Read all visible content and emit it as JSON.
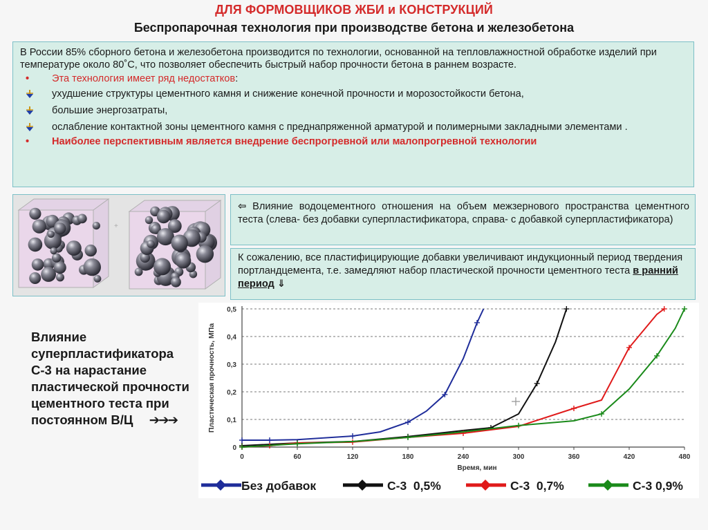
{
  "header": {
    "title": "ДЛЯ ФОРМОВЩИКОВ ЖБИ и КОНСТРУКЦИЙ",
    "subtitle": "Беспропарочная технология при производстве бетона и железобетона"
  },
  "intro": {
    "text": "В России 85% сборного бетона и железобетона производится по технологии, основанной на тепловлажностной обработке изделий при температуре около 80˚С, что позволяет обеспечить быстрый набор прочности бетона в раннем возрасте."
  },
  "disadvantages": {
    "lead_red": "Эта технология имеет ряд недостатков",
    "lead_colon": ":",
    "bullet_symbol": "•",
    "items": [
      " ухудшение структуры цементного камня и снижение конечной прочности и морозостойкости бетона,",
      "большие энергозатраты,",
      "ослабление контактной зоны цементного камня с преднапряженной арматурой и полимерными закладными элементами ."
    ],
    "conclusion_red": "Наиболее перспективным",
    "conclusion_rest": "  является внедрение беспрогревной или малопрогревной технологии"
  },
  "influence_wc": {
    "arrow": "⇦",
    "text": "  Влияние водоцементного отношения на объем межзернового пространства цементного теста (слева- без добавки суперпластификатора, справа- с добавкой суперпластификатора)"
  },
  "note": {
    "text_before": "К сожалению, все пластифицирующие добавки увеличивают индукционный период твердения портландцемента, т.е. замедляют набор пластической прочности цементного теста ",
    "underlined": "в ранний период",
    "arrow": " ⇓"
  },
  "caption": {
    "text": "Влияние суперпластификатора С-3 на нарастание пластической прочности цементного теста при постоянном В/Ц",
    "arrows": "➔➔➔"
  },
  "chart_data": {
    "type": "line",
    "xlabel": "Время, мин",
    "ylabel": "Пластическая прочность, МПа",
    "xlim": [
      0,
      480
    ],
    "ylim": [
      0,
      0.5
    ],
    "x_ticks": [
      "0",
      "60",
      "120",
      "180",
      "240",
      "300",
      "360",
      "420",
      "480"
    ],
    "y_ticks": [
      "0",
      "0,1",
      "0,2",
      "0,3",
      "0,4",
      "0,5"
    ],
    "grid": "horizontal dashed",
    "legend_position": "bottom",
    "series": [
      {
        "name": "Без добавок",
        "color": "#1f2d9a",
        "points": [
          [
            0,
            0.025
          ],
          [
            30,
            0.025
          ],
          [
            60,
            0.027
          ],
          [
            120,
            0.04
          ],
          [
            150,
            0.055
          ],
          [
            180,
            0.09
          ],
          [
            200,
            0.13
          ],
          [
            220,
            0.19
          ],
          [
            240,
            0.32
          ],
          [
            255,
            0.45
          ],
          [
            262,
            0.5
          ]
        ]
      },
      {
        "name": "С-3  0,5%",
        "color": "#111111",
        "points": [
          [
            0,
            0.005
          ],
          [
            60,
            0.015
          ],
          [
            120,
            0.02
          ],
          [
            180,
            0.038
          ],
          [
            240,
            0.06
          ],
          [
            270,
            0.07
          ],
          [
            300,
            0.12
          ],
          [
            320,
            0.23
          ],
          [
            340,
            0.38
          ],
          [
            352,
            0.5
          ]
        ]
      },
      {
        "name": "С-3  0,7%",
        "color": "#e01a1a",
        "points": [
          [
            0,
            0.0
          ],
          [
            30,
            0.005
          ],
          [
            60,
            0.015
          ],
          [
            120,
            0.018
          ],
          [
            180,
            0.035
          ],
          [
            240,
            0.05
          ],
          [
            300,
            0.075
          ],
          [
            360,
            0.14
          ],
          [
            390,
            0.17
          ],
          [
            420,
            0.36
          ],
          [
            450,
            0.48
          ],
          [
            458,
            0.5
          ]
        ]
      },
      {
        "name": "С-3 0,9%",
        "color": "#1a8a1a",
        "points": [
          [
            0,
            0.0
          ],
          [
            60,
            0.012
          ],
          [
            120,
            0.02
          ],
          [
            180,
            0.035
          ],
          [
            240,
            0.055
          ],
          [
            300,
            0.078
          ],
          [
            360,
            0.095
          ],
          [
            390,
            0.12
          ],
          [
            420,
            0.21
          ],
          [
            450,
            0.33
          ],
          [
            470,
            0.43
          ],
          [
            480,
            0.5
          ]
        ]
      }
    ],
    "stray_marker": {
      "x": 297,
      "y": 0.165,
      "color": "#999999"
    }
  }
}
